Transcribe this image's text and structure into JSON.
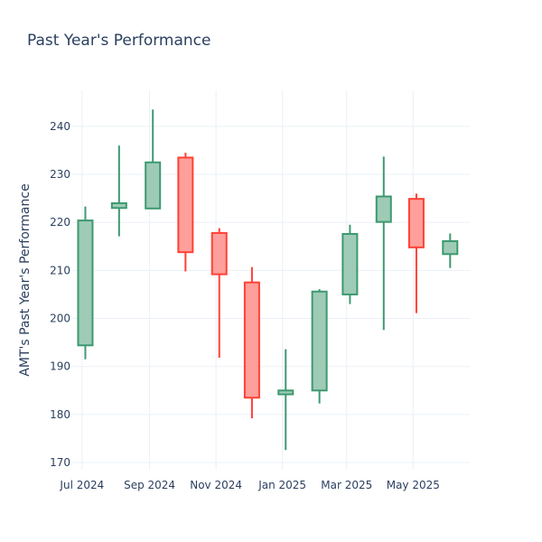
{
  "chart_data": {
    "type": "candlestick",
    "title": "Past Year's Performance",
    "ylabel": "AMT's Past Year's Performance",
    "xlabel": "",
    "ylim": [
      168.5,
      247.5
    ],
    "yticks": [
      170,
      180,
      190,
      200,
      210,
      220,
      230,
      240
    ],
    "xticks": [
      {
        "date": "2024-07-01",
        "label": "Jul 2024"
      },
      {
        "date": "2024-09-01",
        "label": "Sep 2024"
      },
      {
        "date": "2024-11-01",
        "label": "Nov 2024"
      },
      {
        "date": "2025-01-01",
        "label": "Jan 2025"
      },
      {
        "date": "2025-03-01",
        "label": "Mar 2025"
      },
      {
        "date": "2025-05-01",
        "label": "May 2025"
      }
    ],
    "grid": true,
    "colors": {
      "increasing_line": "#3d9970",
      "increasing_fill": "#9ecbb6",
      "decreasing_line": "#ff4136",
      "decreasing_fill": "#ff9f9b"
    },
    "candles": [
      {
        "date": "2024-07-01",
        "open": 194.4,
        "high": 223.3,
        "low": 191.5,
        "close": 220.4
      },
      {
        "date": "2024-08-01",
        "open": 223.0,
        "high": 236.0,
        "low": 217.1,
        "close": 224.0
      },
      {
        "date": "2024-09-01",
        "open": 222.9,
        "high": 243.5,
        "low": 222.9,
        "close": 232.5
      },
      {
        "date": "2024-10-01",
        "open": 233.5,
        "high": 234.5,
        "low": 209.8,
        "close": 213.8
      },
      {
        "date": "2024-11-01",
        "open": 217.8,
        "high": 218.8,
        "low": 191.8,
        "close": 209.2
      },
      {
        "date": "2024-12-01",
        "open": 207.5,
        "high": 210.7,
        "low": 179.2,
        "close": 183.5
      },
      {
        "date": "2025-01-01",
        "open": 184.2,
        "high": 193.6,
        "low": 172.6,
        "close": 185.0
      },
      {
        "date": "2025-02-01",
        "open": 185.0,
        "high": 206.1,
        "low": 182.3,
        "close": 205.6
      },
      {
        "date": "2025-03-01",
        "open": 205.0,
        "high": 219.5,
        "low": 203.0,
        "close": 217.6
      },
      {
        "date": "2025-04-01",
        "open": 220.1,
        "high": 233.7,
        "low": 197.6,
        "close": 225.4
      },
      {
        "date": "2025-05-01",
        "open": 224.9,
        "high": 226.0,
        "low": 201.1,
        "close": 214.8
      },
      {
        "date": "2025-06-01",
        "open": 213.4,
        "high": 217.7,
        "low": 210.5,
        "close": 216.1
      }
    ]
  }
}
